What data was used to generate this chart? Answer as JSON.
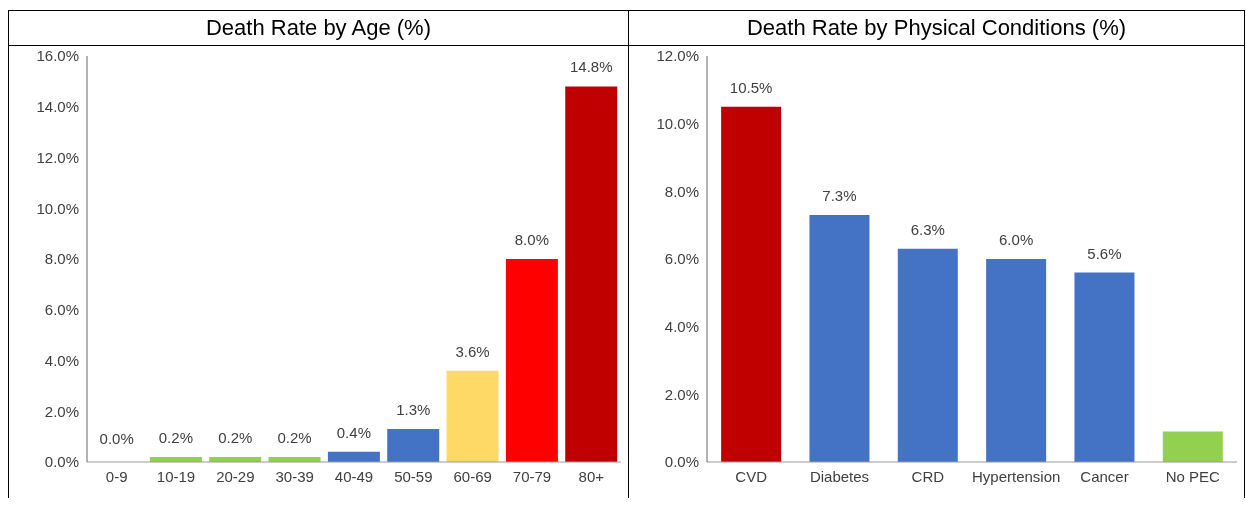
{
  "chart_data": [
    {
      "type": "bar",
      "title": "Death Rate by Age (%)",
      "categories": [
        "0-9",
        "10-19",
        "20-29",
        "30-39",
        "40-49",
        "50-59",
        "60-69",
        "70-79",
        "80+"
      ],
      "values": [
        0,
        0.2,
        0.2,
        0.2,
        0.4,
        1.3,
        3.6,
        8.0,
        14.8
      ],
      "colors": [
        "#92d050",
        "#92d050",
        "#92d050",
        "#92d050",
        "#4472c4",
        "#4472c4",
        "#ffd966",
        "#ff0000",
        "#c00000"
      ],
      "value_labels": [
        "0.0%",
        "0.2%",
        "0.2%",
        "0.2%",
        "0.4%",
        "1.3%",
        "3.6%",
        "8.0%",
        "14.8%"
      ],
      "ylim": [
        0,
        16
      ],
      "yticks": [
        {
          "value": 0,
          "label": "0.0%"
        },
        {
          "value": 2,
          "label": "2.0%"
        },
        {
          "value": 4,
          "label": "4.0%"
        },
        {
          "value": 6,
          "label": "6.0%"
        },
        {
          "value": 8,
          "label": "8.0%"
        },
        {
          "value": 10,
          "label": "10.0%"
        },
        {
          "value": 12,
          "label": "12.0%"
        },
        {
          "value": 14,
          "label": "14.0%"
        },
        {
          "value": 16,
          "label": "16.0%"
        }
      ],
      "grid": false,
      "legend": false
    },
    {
      "type": "bar",
      "title": "Death Rate by Physical Conditions (%)",
      "categories": [
        "CVD",
        "Diabetes",
        "CRD",
        "Hypertension",
        "Cancer",
        "No PEC"
      ],
      "values": [
        10.5,
        7.3,
        6.3,
        6.0,
        5.6,
        0.9
      ],
      "colors": [
        "#c00000",
        "#4472c4",
        "#4472c4",
        "#4472c4",
        "#4472c4",
        "#92d050"
      ],
      "value_labels": [
        "10.5%",
        "7.3%",
        "6.3%",
        "6.0%",
        "5.6%",
        null
      ],
      "ylim": [
        0,
        12
      ],
      "yticks": [
        {
          "value": 0,
          "label": "0.0%"
        },
        {
          "value": 2,
          "label": "2.0%"
        },
        {
          "value": 4,
          "label": "4.0%"
        },
        {
          "value": 6,
          "label": "6.0%"
        },
        {
          "value": 8,
          "label": "8.0%"
        },
        {
          "value": 10,
          "label": "10.0%"
        },
        {
          "value": 12,
          "label": "12.0%"
        }
      ],
      "grid": false,
      "legend": false
    }
  ]
}
